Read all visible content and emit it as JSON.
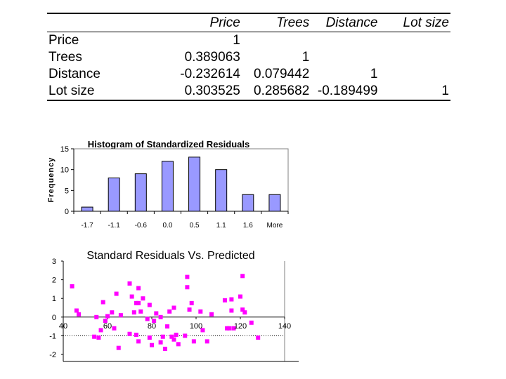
{
  "correlation_table": {
    "headers": [
      "",
      "Price",
      "Trees",
      "Distance",
      "Lot size"
    ],
    "rows": [
      {
        "label": "Price",
        "cells": [
          "1",
          "",
          "",
          ""
        ]
      },
      {
        "label": "Trees",
        "cells": [
          "0.389063",
          "1",
          "",
          ""
        ]
      },
      {
        "label": "Distance",
        "cells": [
          "-0.232614",
          "0.079442",
          "1",
          ""
        ]
      },
      {
        "label": "Lot size",
        "cells": [
          "0.303525",
          "0.285682",
          "-0.189499",
          "1"
        ]
      }
    ]
  },
  "colors": {
    "bar": "#9999ff",
    "point": "#ff00ff"
  },
  "chart_data": [
    {
      "type": "bar",
      "title": "Histogram of Standardized Residuals",
      "ylabel": "Frequency",
      "xlabel": "",
      "categories": [
        "-1.7",
        "-1.1",
        "-0.6",
        "0.0",
        "0.5",
        "1.1",
        "1.6",
        "More"
      ],
      "values": [
        1,
        8,
        9,
        12,
        13,
        10,
        4,
        4
      ],
      "ylim": [
        0,
        15
      ],
      "yticks": [
        "0",
        "5",
        "10",
        "15"
      ]
    },
    {
      "type": "scatter",
      "title": "Standard Residuals Vs. Predicted",
      "xlim": [
        40,
        140
      ],
      "ylim": [
        -2,
        3
      ],
      "xticks": [
        "40",
        "60",
        "80",
        "100",
        "120",
        "140"
      ],
      "yticks": [
        "-2",
        "-1",
        "0",
        "1",
        "2",
        "3"
      ],
      "reference_line_y": -1,
      "points": [
        [
          44,
          1.65
        ],
        [
          46,
          0.35
        ],
        [
          47,
          0.15
        ],
        [
          54,
          -1.05
        ],
        [
          55,
          0.0
        ],
        [
          56,
          -1.1
        ],
        [
          57,
          -0.7
        ],
        [
          58,
          0.8
        ],
        [
          59,
          -0.2
        ],
        [
          60,
          0.05
        ],
        [
          62,
          0.25
        ],
        [
          63,
          -0.6
        ],
        [
          64,
          1.25
        ],
        [
          65,
          -1.65
        ],
        [
          66,
          0.1
        ],
        [
          70,
          1.8
        ],
        [
          70,
          -0.9
        ],
        [
          71,
          1.1
        ],
        [
          72,
          0.25
        ],
        [
          73,
          0.75
        ],
        [
          73,
          -0.95
        ],
        [
          74,
          1.55
        ],
        [
          74,
          0.75
        ],
        [
          74,
          -1.3
        ],
        [
          75,
          0.3
        ],
        [
          76,
          1.0
        ],
        [
          78,
          -0.1
        ],
        [
          79,
          0.65
        ],
        [
          79,
          -1.1
        ],
        [
          80,
          -1.5
        ],
        [
          81,
          -0.2
        ],
        [
          82,
          0.2
        ],
        [
          84,
          0.0
        ],
        [
          84,
          -1.35
        ],
        [
          85,
          -1.05
        ],
        [
          86,
          -1.7
        ],
        [
          87,
          -0.5
        ],
        [
          88,
          0.3
        ],
        [
          89,
          -1.05
        ],
        [
          90,
          0.5
        ],
        [
          90,
          -1.2
        ],
        [
          91,
          -0.95
        ],
        [
          92,
          -1.45
        ],
        [
          95,
          -1.0
        ],
        [
          96,
          1.6
        ],
        [
          96,
          2.15
        ],
        [
          97,
          0.4
        ],
        [
          98,
          0.75
        ],
        [
          99,
          -1.3
        ],
        [
          102,
          0.3
        ],
        [
          103,
          -0.7
        ],
        [
          105,
          -1.3
        ],
        [
          107,
          0.15
        ],
        [
          113,
          0.9
        ],
        [
          114,
          -0.6
        ],
        [
          115,
          -0.6
        ],
        [
          116,
          0.95
        ],
        [
          116,
          0.35
        ],
        [
          117,
          -0.6
        ],
        [
          120,
          1.1
        ],
        [
          121,
          0.4
        ],
        [
          121,
          2.2
        ],
        [
          122,
          0.25
        ],
        [
          125,
          -0.3
        ],
        [
          128,
          -1.1
        ]
      ]
    }
  ]
}
